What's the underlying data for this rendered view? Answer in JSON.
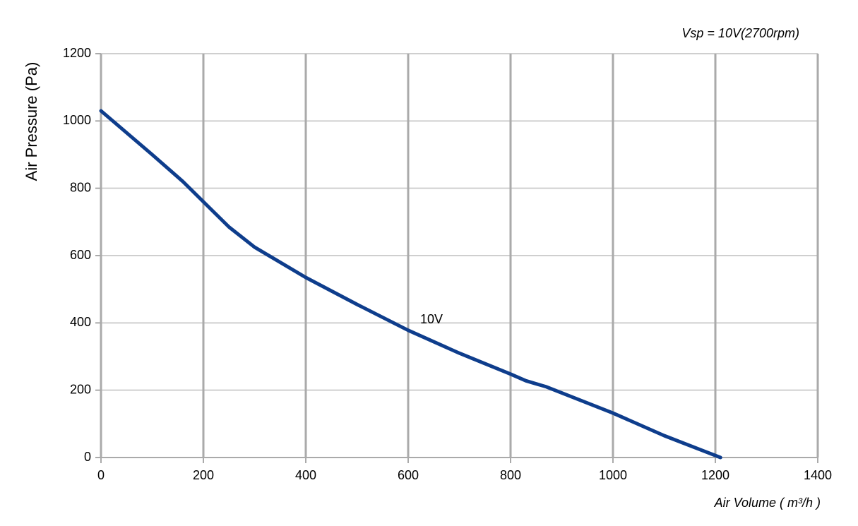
{
  "chart_data": {
    "type": "line",
    "title": "Vsp = 10V(2700rpm)",
    "x_label": "Air Volume ( m³/h )",
    "y_label": "Air Pressure  (Pa)",
    "x": [
      0,
      100,
      160,
      200,
      250,
      300,
      400,
      500,
      600,
      700,
      800,
      830,
      870,
      1000,
      1100,
      1210
    ],
    "series": [
      {
        "name": "10V",
        "color": "#0e3d8c",
        "values": [
          1030,
          900,
          820,
          760,
          685,
          625,
          535,
          455,
          378,
          310,
          248,
          228,
          210,
          132,
          65,
          0
        ]
      }
    ],
    "xlim": [
      0,
      1400
    ],
    "xticks": [
      0,
      200,
      400,
      600,
      800,
      1000,
      1200,
      1400
    ],
    "ylim": [
      0,
      1200
    ],
    "yticks": [
      0,
      200,
      400,
      600,
      800,
      1000,
      1200
    ],
    "grid": true
  }
}
